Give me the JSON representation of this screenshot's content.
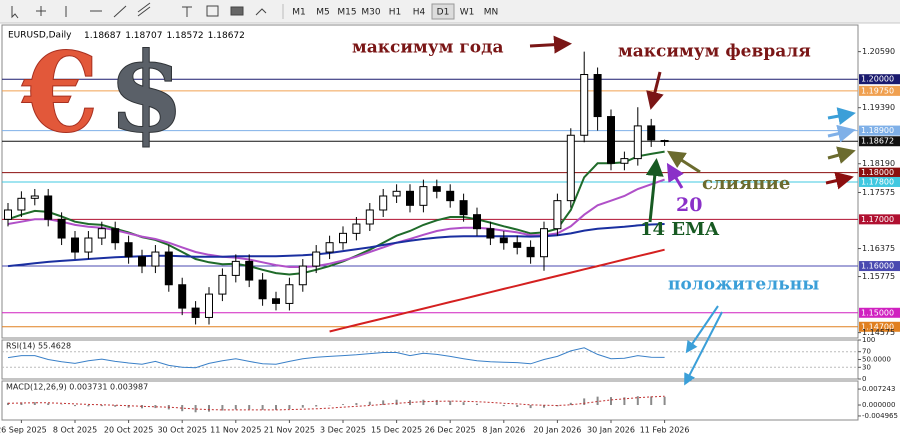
{
  "toolbar": {
    "timeframes": [
      "M1",
      "M5",
      "M15",
      "M30",
      "H1",
      "H4",
      "D1",
      "W1",
      "MN"
    ],
    "active_index": 6
  },
  "image_text": {
    "euro": "€",
    "dollar": "$"
  },
  "chart_data": {
    "type": "candlestick",
    "title": "EURUSD,Daily",
    "ohlc_labels": [
      "1.18687",
      "1.18707",
      "1.18572",
      "1.18672"
    ],
    "open": [
      1.17,
      1.172,
      1.1745,
      1.175,
      1.17,
      1.166,
      1.163,
      1.166,
      1.168,
      1.165,
      1.162,
      1.16,
      1.163,
      1.156,
      1.151,
      1.149,
      1.154,
      1.158,
      1.161,
      1.157,
      1.153,
      1.152,
      1.156,
      1.16,
      1.163,
      1.165,
      1.167,
      1.169,
      1.172,
      1.175,
      1.176,
      1.173,
      1.177,
      1.176,
      1.174,
      1.171,
      1.168,
      1.166,
      1.165,
      1.164,
      1.162,
      1.168,
      1.174,
      1.188,
      1.201,
      1.192,
      1.182,
      1.183,
      1.19,
      1.18687
    ],
    "high": [
      1.1735,
      1.176,
      1.1765,
      1.1765,
      1.1715,
      1.1675,
      1.1675,
      1.1695,
      1.1695,
      1.1665,
      1.1635,
      1.1645,
      1.1645,
      1.1575,
      1.1525,
      1.1555,
      1.1595,
      1.1625,
      1.1625,
      1.1585,
      1.1545,
      1.1575,
      1.1615,
      1.1645,
      1.1665,
      1.1685,
      1.1705,
      1.1735,
      1.1765,
      1.1775,
      1.1775,
      1.1785,
      1.1785,
      1.1775,
      1.1755,
      1.1725,
      1.1695,
      1.1675,
      1.1665,
      1.1655,
      1.1695,
      1.1755,
      1.1895,
      1.2059,
      1.2025,
      1.1935,
      1.1845,
      1.194,
      1.1915,
      1.18707
    ],
    "low": [
      1.1685,
      1.1705,
      1.173,
      1.1685,
      1.1645,
      1.1615,
      1.1615,
      1.1645,
      1.1635,
      1.1605,
      1.1585,
      1.1585,
      1.1545,
      1.1495,
      1.1475,
      1.1475,
      1.1525,
      1.1565,
      1.1555,
      1.1515,
      1.1505,
      1.1505,
      1.1545,
      1.1585,
      1.1615,
      1.1635,
      1.1655,
      1.1675,
      1.1705,
      1.1735,
      1.1715,
      1.1715,
      1.1745,
      1.1725,
      1.1695,
      1.1665,
      1.1645,
      1.1635,
      1.1625,
      1.1605,
      1.159,
      1.1665,
      1.1725,
      1.1865,
      1.189,
      1.1805,
      1.1805,
      1.1815,
      1.1855,
      1.18572
    ],
    "close": [
      1.172,
      1.1745,
      1.175,
      1.17,
      1.166,
      1.163,
      1.166,
      1.168,
      1.165,
      1.162,
      1.16,
      1.163,
      1.156,
      1.151,
      1.149,
      1.154,
      1.158,
      1.161,
      1.157,
      1.153,
      1.152,
      1.156,
      1.16,
      1.163,
      1.165,
      1.167,
      1.169,
      1.172,
      1.175,
      1.176,
      1.173,
      1.177,
      1.176,
      1.174,
      1.171,
      1.168,
      1.166,
      1.165,
      1.164,
      1.162,
      1.168,
      1.174,
      1.188,
      1.201,
      1.192,
      1.182,
      1.183,
      1.19,
      1.187,
      1.18672
    ],
    "lines": [
      {
        "color": "#1f6b2a",
        "values": [
          1.17,
          1.171,
          1.1718,
          1.1716,
          1.1706,
          1.1695,
          1.169,
          1.1688,
          1.168,
          1.1672,
          1.1662,
          1.1656,
          1.1645,
          1.163,
          1.1615,
          1.1608,
          1.1604,
          1.1605,
          1.16,
          1.1592,
          1.1585,
          1.1582,
          1.1585,
          1.1592,
          1.16,
          1.161,
          1.1622,
          1.1635,
          1.165,
          1.1665,
          1.1675,
          1.1688,
          1.1698,
          1.1705,
          1.1705,
          1.17,
          1.1693,
          1.1685,
          1.1678,
          1.167,
          1.1672,
          1.168,
          1.172,
          1.179,
          1.182,
          1.182,
          1.1822,
          1.1835,
          1.184,
          1.1845
        ]
      },
      {
        "color": "#b050c8",
        "values": [
          1.169,
          1.1695,
          1.17,
          1.17,
          1.1695,
          1.1688,
          1.1684,
          1.1682,
          1.1677,
          1.167,
          1.1663,
          1.1658,
          1.165,
          1.164,
          1.163,
          1.1624,
          1.162,
          1.1618,
          1.1614,
          1.1608,
          1.1602,
          1.1598,
          1.1598,
          1.16,
          1.1605,
          1.1612,
          1.162,
          1.163,
          1.164,
          1.165,
          1.1658,
          1.1667,
          1.1675,
          1.168,
          1.1682,
          1.1682,
          1.168,
          1.1676,
          1.1672,
          1.1666,
          1.1666,
          1.167,
          1.1685,
          1.171,
          1.173,
          1.174,
          1.175,
          1.1765,
          1.1775,
          1.1785
        ]
      },
      {
        "color": "#1a2fa0",
        "values": [
          1.16,
          1.1603,
          1.1606,
          1.1609,
          1.1611,
          1.1613,
          1.1615,
          1.1617,
          1.1619,
          1.162,
          1.1621,
          1.1622,
          1.1622,
          1.1621,
          1.162,
          1.162,
          1.162,
          1.1621,
          1.1621,
          1.1621,
          1.1621,
          1.1622,
          1.1623,
          1.1625,
          1.1628,
          1.1632,
          1.1636,
          1.164,
          1.1645,
          1.165,
          1.1654,
          1.1658,
          1.1661,
          1.1663,
          1.1664,
          1.1664,
          1.1664,
          1.1664,
          1.1664,
          1.1663,
          1.1664,
          1.1666,
          1.167,
          1.1676,
          1.168,
          1.1682,
          1.1684,
          1.1687,
          1.1689,
          1.169
        ]
      },
      {
        "color": "#d42020",
        "values": [
          null,
          null,
          null,
          null,
          null,
          null,
          null,
          null,
          null,
          null,
          null,
          null,
          null,
          null,
          null,
          null,
          null,
          null,
          null,
          null,
          null,
          null,
          null,
          null,
          1.146,
          1.1467,
          1.1474,
          1.1481,
          1.1488,
          1.1495,
          1.1502,
          1.1509,
          1.1516,
          1.1523,
          1.153,
          1.1537,
          1.1544,
          1.1551,
          1.1558,
          1.1565,
          1.1572,
          1.1579,
          1.1586,
          1.1593,
          1.16,
          1.1607,
          1.1614,
          1.1621,
          1.1628,
          1.1635
        ]
      }
    ],
    "levels": [
      {
        "value": 1.2,
        "label": "1.20000",
        "color": "#1a1a6e"
      },
      {
        "value": 1.1975,
        "label": "1.19750",
        "color": "#f0a050"
      },
      {
        "value": 1.189,
        "label": "1.18900",
        "color": "#7fb0e8"
      },
      {
        "value": 1.18672,
        "label": "1.18672",
        "color": "#111111"
      },
      {
        "value": 1.18,
        "label": "1.18000",
        "color": "#8b0f0f"
      },
      {
        "value": 1.178,
        "label": "1.17800",
        "color": "#40c8e0"
      },
      {
        "value": 1.17,
        "label": "1.17000",
        "color": "#b01030"
      },
      {
        "value": 1.16,
        "label": "1.16000",
        "color": "#4a4ab0"
      },
      {
        "value": 1.15,
        "label": "1.15000",
        "color": "#d020c0"
      },
      {
        "value": 1.147,
        "label": "1.14700",
        "color": "#e08020"
      }
    ],
    "ylim": [
      1.1446,
      1.2116
    ],
    "yticks": [
      {
        "value": 1.2059,
        "label": "1.20590"
      },
      {
        "value": 1.1939,
        "label": "1.19390"
      },
      {
        "value": 1.1819,
        "label": "1.18190"
      },
      {
        "value": 1.17575,
        "label": "1.17575"
      },
      {
        "value": 1.16375,
        "label": "1.16375"
      },
      {
        "value": 1.15775,
        "label": "1.15775"
      },
      {
        "value": 1.14575,
        "label": "1.14575"
      }
    ],
    "xticks": [
      {
        "value": 1,
        "label": "26 Sep 2025"
      },
      {
        "value": 5,
        "label": "8 Oct 2025"
      },
      {
        "value": 9,
        "label": "20 Oct 2025"
      },
      {
        "value": 13,
        "label": "30 Oct 2025"
      },
      {
        "value": 17,
        "label": "11 Nov 2025"
      },
      {
        "value": 21,
        "label": "21 Nov 2025"
      },
      {
        "value": 25,
        "label": "3 Dec 2025"
      },
      {
        "value": 29,
        "label": "15 Dec 2025"
      },
      {
        "value": 33,
        "label": "26 Dec 2025"
      },
      {
        "value": 37,
        "label": "8 Jan 2026"
      },
      {
        "value": 41,
        "label": "20 Jan 2026"
      },
      {
        "value": 45,
        "label": "30 Jan 2026"
      },
      {
        "value": 49,
        "label": "11 Feb 2026"
      }
    ],
    "annotations": [
      "максимум года",
      "максимум февраля",
      "слияние",
      "20",
      "14 EMA",
      "положительны"
    ]
  },
  "indicators": [
    {
      "type": "line",
      "title": "RSI(14) 55.4628",
      "color": "#3a80c8",
      "values": [
        55,
        60,
        60,
        50,
        44,
        40,
        47,
        51,
        45,
        41,
        38,
        45,
        35,
        30,
        29,
        40,
        47,
        52,
        45,
        39,
        38,
        45,
        52,
        56,
        58,
        60,
        62,
        65,
        68,
        68,
        60,
        66,
        63,
        58,
        52,
        47,
        44,
        43,
        42,
        39,
        50,
        58,
        72,
        80,
        63,
        52,
        53,
        60,
        56,
        55.4628
      ],
      "ylim": [
        0,
        100
      ],
      "yticks": [
        0,
        30,
        {
          "value": 50,
          "label": "50.0000"
        },
        70,
        100
      ],
      "levels": [
        30,
        70
      ]
    },
    {
      "type": "macd",
      "title": "MACD(12,26,9) 0.003731 0.003987",
      "color": "#8a8a8a",
      "signal_color": "#c03030",
      "values": [
        0.001,
        0.0012,
        0.0013,
        0.0008,
        0.0002,
        -0.0005,
        -0.0006,
        -0.0005,
        -0.0008,
        -0.0012,
        -0.0015,
        -0.0014,
        -0.002,
        -0.0028,
        -0.0033,
        -0.003,
        -0.0025,
        -0.002,
        -0.002,
        -0.0022,
        -0.0022,
        -0.0018,
        -0.0012,
        -0.0007,
        -0.0002,
        0.0004,
        0.0009,
        0.0015,
        0.0021,
        0.0024,
        0.0022,
        0.0024,
        0.0023,
        0.0019,
        0.0013,
        0.0006,
        0.0,
        -0.0005,
        -0.0009,
        -0.0014,
        -0.0012,
        -0.0006,
        0.001,
        0.003,
        0.0038,
        0.0036,
        0.0035,
        0.004,
        0.0039,
        0.003731
      ],
      "signal": [
        0.0008,
        0.0009,
        0.001,
        0.001,
        0.0008,
        0.0005,
        0.0003,
        0.0001,
        -0.0001,
        -0.0003,
        -0.0006,
        -0.0008,
        -0.001,
        -0.0014,
        -0.0018,
        -0.0021,
        -0.0022,
        -0.0022,
        -0.0022,
        -0.0022,
        -0.0022,
        -0.0021,
        -0.0019,
        -0.0017,
        -0.0014,
        -0.001,
        -0.0006,
        -0.0002,
        0.0003,
        0.0008,
        0.0012,
        0.0015,
        0.0017,
        0.0018,
        0.0017,
        0.0015,
        0.0012,
        0.0008,
        0.0005,
        0.0001,
        -0.0001,
        -0.0002,
        0.0001,
        0.0008,
        0.0016,
        0.0023,
        0.0028,
        0.0033,
        0.0037,
        0.003987
      ],
      "ylim": [
        -0.0068,
        0.0109
      ],
      "yticks": [
        {
          "value": 0.007243,
          "label": "0.007243"
        },
        {
          "value": 0,
          "label": "0.000000"
        },
        {
          "value": -0.004965,
          "label": "-0.004965"
        }
      ]
    }
  ]
}
